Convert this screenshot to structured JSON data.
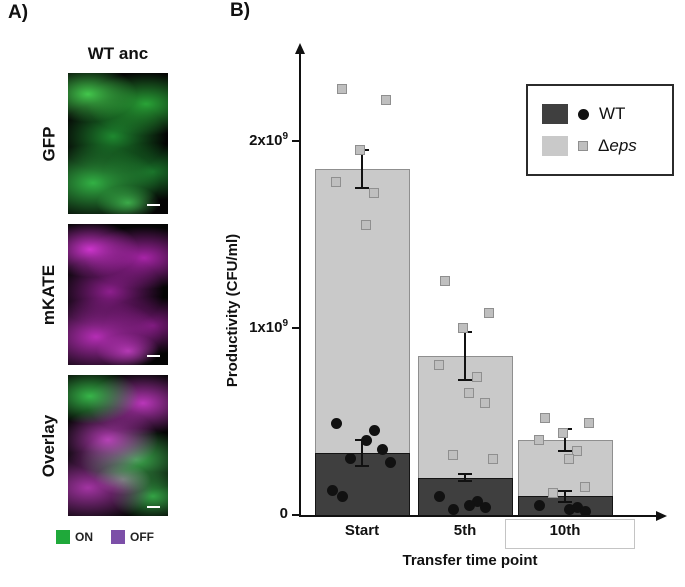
{
  "figure": {
    "panel_a": {
      "label": "A)",
      "title": "WT anc",
      "channels": [
        {
          "label": "GFP",
          "color": "#2fbf4a"
        },
        {
          "label": "mKATE",
          "color": "#c32fc3"
        },
        {
          "label": "Overlay",
          "color": ""
        }
      ],
      "state_legend": {
        "on_label": "ON",
        "on_color": "#1fa93a",
        "off_label": "OFF",
        "off_color": "#7c4fa8"
      }
    },
    "panel_b": {
      "label": "B)"
    }
  },
  "chart_data": {
    "type": "bar",
    "title": "",
    "categories": [
      "Start",
      "5th",
      "10th"
    ],
    "xlabel": "Transfer time point",
    "ylabel": "Productivity (CFU/ml)",
    "ylim": [
      0,
      2400000000.0
    ],
    "grid": false,
    "legend_position": "top-right",
    "yticks": [
      {
        "value": 0,
        "label": "0",
        "sup": ""
      },
      {
        "value": 1000000000.0,
        "label": "1x10",
        "sup": "9"
      },
      {
        "value": 2000000000.0,
        "label": "2x10",
        "sup": "9"
      }
    ],
    "series": [
      {
        "name": "Δeps",
        "role": "total-stack",
        "color": "#c9c9c9",
        "border_color": "#8f8f8f",
        "marker": "square",
        "marker_color": "#bfbfbf",
        "values": [
          1850000000.0,
          850000000.0,
          400000000.0
        ],
        "errors": [
          100000000.0,
          130000000.0,
          60000000.0
        ],
        "points": [
          [
            2280000000.0,
            2220000000.0,
            1950000000.0,
            1780000000.0,
            1720000000.0,
            1550000000.0
          ],
          [
            1250000000.0,
            1080000000.0,
            1000000000.0,
            800000000.0,
            740000000.0,
            650000000.0,
            600000000.0,
            320000000.0,
            300000000.0
          ],
          [
            520000000.0,
            490000000.0,
            440000000.0,
            400000000.0,
            340000000.0,
            300000000.0,
            150000000.0,
            120000000.0
          ]
        ]
      },
      {
        "name": "WT",
        "role": "bottom-stack",
        "color": "#3f3f3f",
        "border_color": "#141414",
        "marker": "circle",
        "marker_color": "#111111",
        "values": [
          330000000.0,
          200000000.0,
          100000000.0
        ],
        "errors": [
          70000000.0,
          20000000.0,
          30000000.0
        ],
        "points": [
          [
            490000000.0,
            450000000.0,
            400000000.0,
            350000000.0,
            300000000.0,
            280000000.0,
            130000000.0,
            100000000.0
          ],
          [
            100000000.0,
            70000000.0,
            50000000.0,
            40000000.0,
            30000000.0
          ],
          [
            50000000.0,
            40000000.0,
            30000000.0,
            20000000.0
          ]
        ]
      }
    ],
    "legend": [
      {
        "name": "WT",
        "prefix": "",
        "italic_part": "",
        "swatch": "#3f3f3f",
        "marker": "circle",
        "marker_color": "#111111"
      },
      {
        "name": "eps",
        "prefix": "Δ",
        "italic_part": "eps",
        "swatch": "#c9c9c9",
        "marker": "square",
        "marker_color": "#bfbfbf"
      }
    ]
  }
}
